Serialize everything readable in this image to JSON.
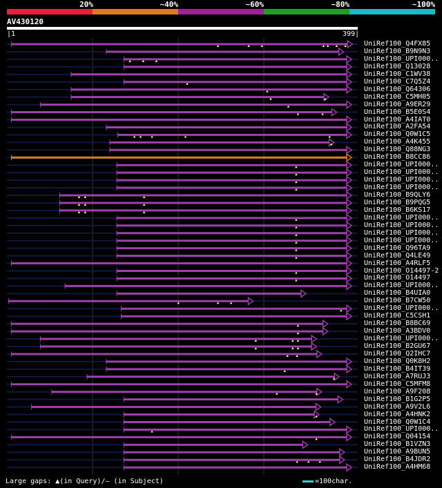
{
  "scale": {
    "labels": [
      "20%",
      "~40%",
      "~60%",
      "~80%",
      "~100%"
    ],
    "colors": [
      "#e8203a",
      "#e07a20",
      "#a020a0",
      "#20a020",
      "#20b8c8"
    ]
  },
  "query": {
    "name": "AV430120",
    "start": "1",
    "end": "399"
  },
  "colors": {
    "hit": "#a040b0",
    "hit_highlight": "#e08020",
    "background_line": "#101840",
    "gap_marker": "#ffff88",
    "grid": "#333333"
  },
  "legend": {
    "gaps_text": "Large gaps: ▲(in Query)/— (in Subject)",
    "scale_text": "=100char."
  },
  "hits": [
    {
      "label": "UniRef100_Q4FX85",
      "s": 5,
      "e": 393,
      "color": "hit",
      "gaps": [
        240,
        275,
        290,
        360,
        365,
        375,
        385
      ]
    },
    {
      "label": "UniRef100_B9N9N3",
      "s": 113,
      "e": 383,
      "color": "hit",
      "gaps": []
    },
    {
      "label": "UniRef100_UPI000..",
      "s": 133,
      "e": 392,
      "color": "hit",
      "gaps": [
        140,
        155,
        170
      ]
    },
    {
      "label": "UniRef100_Q13028",
      "s": 133,
      "e": 392,
      "color": "hit",
      "gaps": []
    },
    {
      "label": "UniRef100_C1WV38",
      "s": 73,
      "e": 392,
      "color": "hit",
      "gaps": []
    },
    {
      "label": "UniRef100_C7Q5Z4",
      "s": 133,
      "e": 392,
      "color": "hit",
      "gaps": [
        205
      ]
    },
    {
      "label": "UniRef100_Q64306",
      "s": 73,
      "e": 392,
      "color": "hit",
      "gaps": [
        296
      ]
    },
    {
      "label": "UniRef100_C5MH05",
      "s": 73,
      "e": 366,
      "color": "hit",
      "gaps": [
        300,
        362
      ]
    },
    {
      "label": "UniRef100_A9ER29",
      "s": 38,
      "e": 392,
      "color": "hit",
      "gaps": [
        320
      ]
    },
    {
      "label": "UniRef100_B5E0S4",
      "s": 5,
      "e": 375,
      "color": "hit",
      "gaps": [
        331,
        359
      ]
    },
    {
      "label": "UniRef100_A4IAT0",
      "s": 5,
      "e": 392,
      "color": "hit",
      "gaps": []
    },
    {
      "label": "UniRef100_A2FA54",
      "s": 113,
      "e": 392,
      "color": "hit",
      "gaps": []
    },
    {
      "label": "UniRef100_Q0W1C5",
      "s": 126,
      "e": 392,
      "color": "hit",
      "gaps": [
        145,
        152,
        165,
        203,
        367
      ]
    },
    {
      "label": "UniRef100_A4K455",
      "s": 117,
      "e": 372,
      "color": "hit",
      "gaps": [
        369
      ]
    },
    {
      "label": "UniRef100_Q88NG3",
      "s": 117,
      "e": 392,
      "color": "hit",
      "gaps": []
    },
    {
      "label": "UniRef100_B8CC86",
      "s": 5,
      "e": 392,
      "color": "hit_highlight",
      "gaps": []
    },
    {
      "label": "UniRef100_UPI000..",
      "s": 125,
      "e": 392,
      "color": "hit",
      "gaps": [
        329
      ]
    },
    {
      "label": "UniRef100_UPI000..",
      "s": 125,
      "e": 392,
      "color": "hit",
      "gaps": [
        329
      ]
    },
    {
      "label": "UniRef100_UPI000..",
      "s": 125,
      "e": 392,
      "color": "hit",
      "gaps": [
        329
      ]
    },
    {
      "label": "UniRef100_UPI000..",
      "s": 125,
      "e": 392,
      "color": "hit",
      "gaps": [
        329
      ]
    },
    {
      "label": "UniRef100_B9QLY6",
      "s": 60,
      "e": 392,
      "color": "hit",
      "gaps": [
        82,
        89,
        156
      ]
    },
    {
      "label": "UniRef100_B9PQG5",
      "s": 60,
      "e": 392,
      "color": "hit",
      "gaps": [
        82,
        89,
        156
      ]
    },
    {
      "label": "UniRef100_B6KS17",
      "s": 60,
      "e": 392,
      "color": "hit",
      "gaps": [
        82,
        89,
        156
      ]
    },
    {
      "label": "UniRef100_UPI000..",
      "s": 125,
      "e": 392,
      "color": "hit",
      "gaps": [
        329
      ]
    },
    {
      "label": "UniRef100_UPI000..",
      "s": 125,
      "e": 392,
      "color": "hit",
      "gaps": [
        329
      ]
    },
    {
      "label": "UniRef100_UPI000..",
      "s": 125,
      "e": 392,
      "color": "hit",
      "gaps": [
        329
      ]
    },
    {
      "label": "UniRef100_UPI000..",
      "s": 125,
      "e": 392,
      "color": "hit",
      "gaps": [
        329
      ]
    },
    {
      "label": "UniRef100_Q96TA9",
      "s": 125,
      "e": 392,
      "color": "hit",
      "gaps": [
        329
      ]
    },
    {
      "label": "UniRef100_Q4LE49",
      "s": 125,
      "e": 392,
      "color": "hit",
      "gaps": [
        329
      ]
    },
    {
      "label": "UniRef100_A4RLF5",
      "s": 5,
      "e": 392,
      "color": "hit",
      "gaps": []
    },
    {
      "label": "UniRef100_O14497-2",
      "s": 125,
      "e": 392,
      "color": "hit",
      "gaps": [
        329
      ]
    },
    {
      "label": "UniRef100_O14497",
      "s": 125,
      "e": 392,
      "color": "hit",
      "gaps": [
        329
      ]
    },
    {
      "label": "UniRef100_UPI000..",
      "s": 66,
      "e": 392,
      "color": "hit",
      "gaps": []
    },
    {
      "label": "UniRef100_B4UIA0",
      "s": 125,
      "e": 340,
      "color": "hit",
      "gaps": []
    },
    {
      "label": "UniRef100_B7CW50",
      "s": 2,
      "e": 280,
      "color": "hit",
      "gaps": [
        195,
        240,
        255
      ]
    },
    {
      "label": "UniRef100_UPI000..",
      "s": 130,
      "e": 392,
      "color": "hit",
      "gaps": [
        380
      ]
    },
    {
      "label": "UniRef100_C5CSH1",
      "s": 130,
      "e": 392,
      "color": "hit",
      "gaps": []
    },
    {
      "label": "UniRef100_B8BC69",
      "s": 5,
      "e": 365,
      "color": "hit",
      "gaps": [
        331
      ]
    },
    {
      "label": "UniRef100_A3BDV0",
      "s": 5,
      "e": 365,
      "color": "hit",
      "gaps": [
        331
      ]
    },
    {
      "label": "UniRef100_UPI000..",
      "s": 38,
      "e": 352,
      "color": "hit",
      "gaps": [
        283,
        325,
        331
      ]
    },
    {
      "label": "UniRef100_B2GU67",
      "s": 38,
      "e": 352,
      "color": "hit",
      "gaps": [
        283,
        325,
        331
      ]
    },
    {
      "label": "UniRef100_Q2IHC7",
      "s": 5,
      "e": 358,
      "color": "hit",
      "gaps": [
        319,
        330
      ]
    },
    {
      "label": "UniRef100_Q0K8H2",
      "s": 113,
      "e": 392,
      "color": "hit",
      "gaps": []
    },
    {
      "label": "UniRef100_B4IT39",
      "s": 113,
      "e": 392,
      "color": "hit",
      "gaps": [
        316
      ]
    },
    {
      "label": "UniRef100_A7RUJ3",
      "s": 91,
      "e": 378,
      "color": "hit",
      "gaps": [
        372
      ]
    },
    {
      "label": "UniRef100_C5MFM8",
      "s": 5,
      "e": 392,
      "color": "hit",
      "gaps": []
    },
    {
      "label": "UniRef100_A9F208",
      "s": 51,
      "e": 358,
      "color": "hit",
      "gaps": [
        307,
        352
      ]
    },
    {
      "label": "UniRef100_B1G2P5",
      "s": 133,
      "e": 382,
      "color": "hit",
      "gaps": []
    },
    {
      "label": "UniRef100_A9V2L6",
      "s": 28,
      "e": 357,
      "color": "hit",
      "gaps": []
    },
    {
      "label": "UniRef100_A4HNK2",
      "s": 133,
      "e": 355,
      "color": "hit",
      "gaps": [
        352
      ]
    },
    {
      "label": "UniRef100_Q0W1C4",
      "s": 133,
      "e": 373,
      "color": "hit",
      "gaps": []
    },
    {
      "label": "UniRef100_UPI000..",
      "s": 133,
      "e": 392,
      "color": "hit",
      "gaps": [
        165
      ]
    },
    {
      "label": "UniRef100_Q04154",
      "s": 5,
      "e": 392,
      "color": "hit",
      "gaps": [
        352
      ]
    },
    {
      "label": "UniRef100_B1VZN3",
      "s": 133,
      "e": 342,
      "color": "hit",
      "gaps": []
    },
    {
      "label": "UniRef100_A9BUN5",
      "s": 133,
      "e": 384,
      "color": "hit",
      "gaps": []
    },
    {
      "label": "UniRef100_B4JDR2",
      "s": 133,
      "e": 384,
      "color": "hit",
      "gaps": [
        330,
        343,
        356
      ]
    },
    {
      "label": "UniRef100_A4HM68",
      "s": 133,
      "e": 392,
      "color": "hit",
      "gaps": []
    }
  ]
}
